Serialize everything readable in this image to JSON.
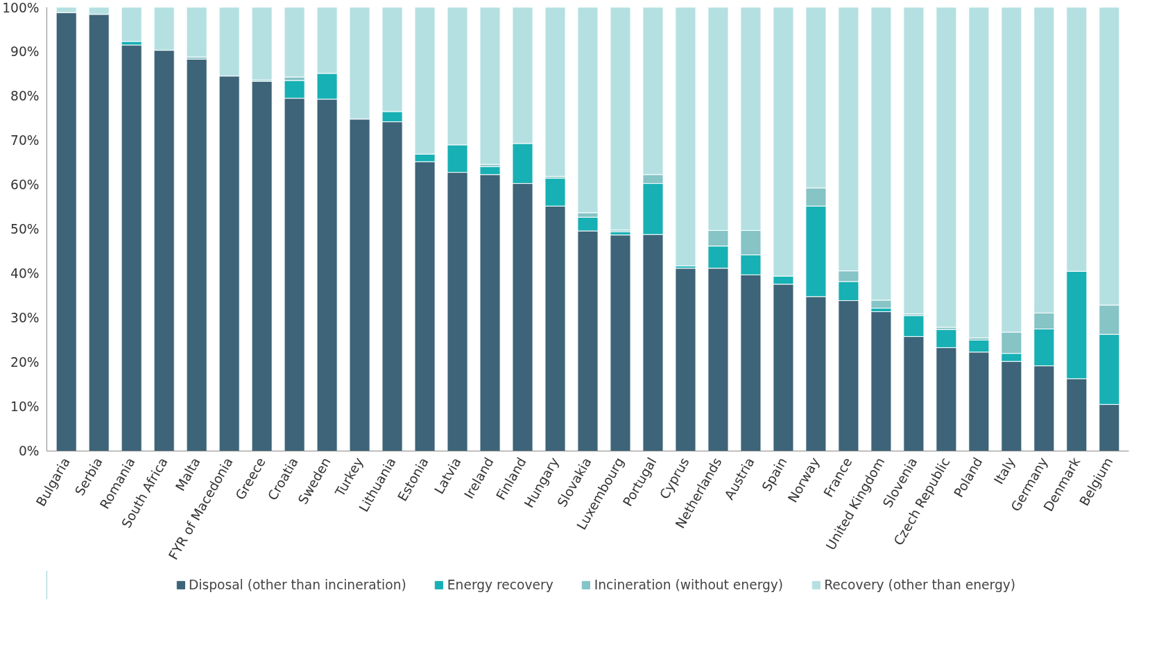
{
  "chart_data": {
    "type": "bar",
    "stacked": true,
    "legend": "bottom",
    "grid": false,
    "categories": [
      "Bulgaria",
      "Serbia",
      "Romania",
      "South Africa",
      "Malta",
      "FYR of Macedonia",
      "Greece",
      "Croatia",
      "Sweden",
      "Turkey",
      "Lithuania",
      "Estonia",
      "Latvia",
      "Ireland",
      "Finland",
      "Hungary",
      "Slovakia",
      "Luxembourg",
      "Portugal",
      "Cyprus",
      "Netherlands",
      "Austria",
      "Spain",
      "Norway",
      "France",
      "United Kingdom",
      "Slovenia",
      "Czech Republic",
      "Poland",
      "Italy",
      "Germany",
      "Denmark",
      "Belgium"
    ],
    "ylim": [
      0,
      100
    ],
    "yticks": [
      {
        "value": 0,
        "label": "0%"
      },
      {
        "value": 10,
        "label": "10%"
      },
      {
        "value": 20,
        "label": "20%"
      },
      {
        "value": 30,
        "label": "30%"
      },
      {
        "value": 40,
        "label": "40%"
      },
      {
        "value": 50,
        "label": "50%"
      },
      {
        "value": 60,
        "label": "60%"
      },
      {
        "value": 70,
        "label": "70%"
      },
      {
        "value": 80,
        "label": "80%"
      },
      {
        "value": 90,
        "label": "90%"
      },
      {
        "value": 100,
        "label": "100%"
      }
    ],
    "series": [
      {
        "name": "Disposal (other than incineration)",
        "color": "#3d6478",
        "values": [
          98.8,
          98.4,
          91.5,
          90.3,
          88.3,
          84.5,
          83.3,
          79.5,
          79.3,
          74.8,
          74.2,
          65.2,
          62.8,
          62.3,
          60.3,
          55.2,
          49.6,
          48.7,
          48.8,
          41.2,
          41.2,
          39.7,
          37.6,
          34.8,
          33.9,
          31.4,
          25.8,
          23.3,
          22.3,
          20.2,
          19.2,
          16.3,
          10.5
        ]
      },
      {
        "name": "Energy recovery",
        "color": "#17b0b4",
        "values": [
          0,
          0,
          0.8,
          0,
          0,
          0,
          0,
          4.0,
          5.8,
          0,
          2.3,
          1.7,
          6.2,
          1.8,
          9.0,
          6.3,
          3.1,
          0.7,
          11.5,
          0.5,
          5.0,
          4.5,
          1.8,
          20.4,
          4.3,
          0.8,
          4.7,
          4.1,
          2.7,
          1.8,
          8.3,
          24.2,
          15.8
        ]
      },
      {
        "name": "Incineration (without energy)",
        "color": "#86c4c6",
        "values": [
          0,
          0,
          0,
          0,
          0.5,
          0,
          0.3,
          0.8,
          0,
          0,
          0,
          0,
          0,
          0.5,
          0,
          0.4,
          1.0,
          0.4,
          2.0,
          0,
          3.5,
          5.5,
          0,
          4.1,
          2.4,
          1.8,
          0.4,
          0.5,
          0.5,
          4.8,
          3.6,
          0,
          6.6
        ]
      },
      {
        "name": "Recovery (other than energy)",
        "color": "#b5e0e2",
        "values": [
          1.2,
          1.6,
          7.7,
          9.7,
          11.2,
          15.5,
          16.4,
          15.7,
          14.9,
          25.2,
          23.5,
          33.1,
          31.0,
          35.4,
          30.7,
          38.1,
          46.3,
          50.2,
          37.7,
          58.3,
          50.3,
          50.3,
          60.6,
          40.7,
          59.4,
          66.0,
          69.1,
          72.1,
          74.5,
          73.2,
          68.9,
          59.5,
          67.1
        ]
      }
    ]
  }
}
